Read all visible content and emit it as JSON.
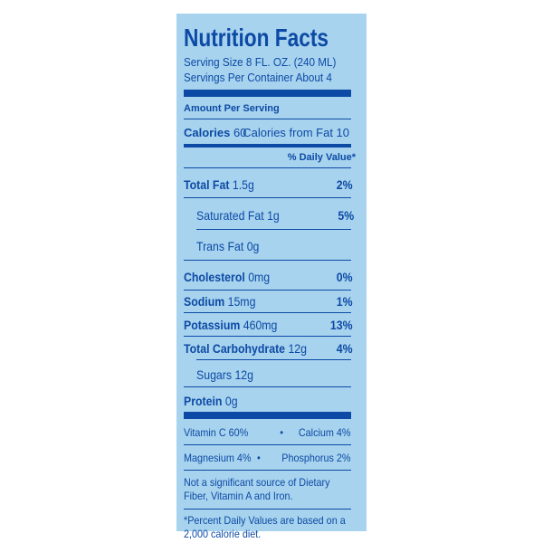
{
  "title": "Nutrition Facts",
  "serving_size": "Serving Size 8 FL. OZ. (240 ML)",
  "servings_per_container": "Servings Per Container About 4",
  "amount_per_serving": "Amount Per Serving",
  "calories": {
    "label": "Calories",
    "value": "60",
    "from_fat": "Calories from Fat 10"
  },
  "daily_value_header": "% Daily Value*",
  "nutrients": [
    {
      "name": "Total Fat",
      "amount": "1.5g",
      "dv": "2%"
    },
    {
      "name": "Saturated Fat",
      "amount": "1g",
      "dv": "5%"
    },
    {
      "name": "Trans Fat",
      "amount": "0g",
      "dv": ""
    },
    {
      "name": "Cholesterol",
      "amount": "0mg",
      "dv": "0%"
    },
    {
      "name": "Sodium",
      "amount": "15mg",
      "dv": "1%"
    },
    {
      "name": "Potassium",
      "amount": "460mg",
      "dv": "13%"
    },
    {
      "name": "Total Carbohydrate",
      "amount": "12g",
      "dv": "4%"
    },
    {
      "name": "Sugars",
      "amount": "12g",
      "dv": ""
    },
    {
      "name": "Protein",
      "amount": "0g",
      "dv": ""
    }
  ],
  "vitamins": [
    {
      "left": "Vitamin C 60%",
      "right": "Calcium 4%"
    },
    {
      "left": "Magnesium 4%",
      "right": "Phosphorus 2%"
    }
  ],
  "bullet": "•",
  "note": "Not a significant source of Dietary Fiber, Vitamin A and Iron.",
  "footnote": "*Percent Daily Values are based on a 2,000 calorie diet.",
  "colors": {
    "panel": "#a7d3ee",
    "ink": "#0d4aa5"
  }
}
